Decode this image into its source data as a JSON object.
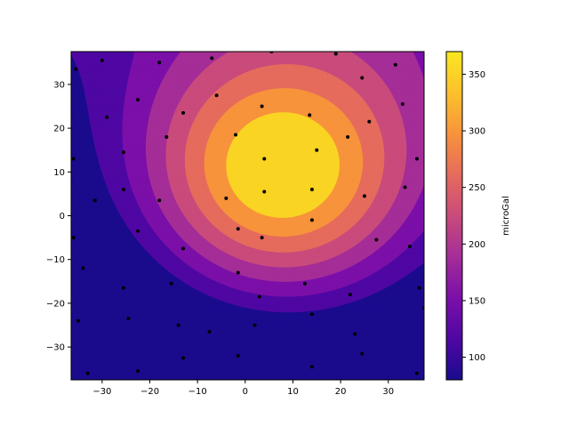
{
  "chart_data": {
    "type": "contour",
    "colormap": "plasma",
    "grid": false,
    "xlim": [
      -36.5,
      37.5
    ],
    "ylim": [
      -37.5,
      37.5
    ],
    "x_ticks": [
      -30,
      -20,
      -10,
      0,
      10,
      20,
      30
    ],
    "y_ticks": [
      -30,
      -20,
      -10,
      0,
      10,
      20,
      30
    ],
    "colorbar": {
      "label": "microGal",
      "range": [
        80,
        370
      ],
      "ticks": [
        100,
        150,
        200,
        250,
        300,
        350
      ],
      "colors": [
        "#1a0b8d",
        "#4f07a3",
        "#7b0fa8",
        "#a42d97",
        "#c94b7b",
        "#e56b5d",
        "#f7933b",
        "#fcc12c",
        "#f9e721"
      ]
    },
    "contour_bands": [
      {
        "level": 110,
        "color": "#1a0b8d"
      },
      {
        "level": 145,
        "color": "#4f07a3"
      },
      {
        "level": 180,
        "color": "#7b0fa8"
      },
      {
        "level": 215,
        "color": "#a42d97"
      },
      {
        "level": 250,
        "color": "#c94b7b"
      },
      {
        "level": 285,
        "color": "#e56b5d"
      },
      {
        "level": 320,
        "color": "#f7933b"
      },
      {
        "level": 355,
        "color": "#f9d423"
      }
    ],
    "points": [
      [
        -35.5,
        33.5
      ],
      [
        -30,
        35.5
      ],
      [
        -18,
        35
      ],
      [
        -7,
        36
      ],
      [
        5.5,
        37.5
      ],
      [
        19,
        37
      ],
      [
        31.5,
        34.5
      ],
      [
        -29,
        22.5
      ],
      [
        -22.5,
        26.5
      ],
      [
        -13,
        23.5
      ],
      [
        -6,
        27.5
      ],
      [
        3.5,
        25
      ],
      [
        13.5,
        23
      ],
      [
        24.5,
        31.5
      ],
      [
        -25.5,
        14.5
      ],
      [
        -16.5,
        18
      ],
      [
        -2,
        18.5
      ],
      [
        4,
        13
      ],
      [
        15,
        15
      ],
      [
        21.5,
        18
      ],
      [
        26,
        21.5
      ],
      [
        33,
        25.5
      ],
      [
        -36,
        13
      ],
      [
        -31.5,
        3.5
      ],
      [
        -25.5,
        6
      ],
      [
        -18,
        3.5
      ],
      [
        -4,
        4
      ],
      [
        4,
        5.5
      ],
      [
        14,
        6
      ],
      [
        25,
        4.5
      ],
      [
        33.5,
        6.5
      ],
      [
        36,
        13
      ],
      [
        -36,
        -5
      ],
      [
        -34,
        -12
      ],
      [
        -22.5,
        -3.5
      ],
      [
        -13,
        -7.5
      ],
      [
        -1.5,
        -3
      ],
      [
        3.5,
        -5
      ],
      [
        14,
        -1
      ],
      [
        27.5,
        -5.5
      ],
      [
        34.5,
        -7
      ],
      [
        -25.5,
        -16.5
      ],
      [
        -15.5,
        -15.5
      ],
      [
        -1.5,
        -13
      ],
      [
        3,
        -18.5
      ],
      [
        12.5,
        -15.5
      ],
      [
        22,
        -18
      ],
      [
        36.5,
        -16.5
      ],
      [
        -35,
        -24
      ],
      [
        -24.5,
        -23.5
      ],
      [
        -14,
        -25
      ],
      [
        -7.5,
        -26.5
      ],
      [
        2,
        -25
      ],
      [
        14,
        -22.5
      ],
      [
        23,
        -27
      ],
      [
        37.5,
        -21
      ],
      [
        -33,
        -36
      ],
      [
        -22.5,
        -35.5
      ],
      [
        -13,
        -32.5
      ],
      [
        -1.5,
        -32
      ],
      [
        14,
        -34.5
      ],
      [
        24.5,
        -31.5
      ],
      [
        36,
        -36
      ]
    ]
  }
}
